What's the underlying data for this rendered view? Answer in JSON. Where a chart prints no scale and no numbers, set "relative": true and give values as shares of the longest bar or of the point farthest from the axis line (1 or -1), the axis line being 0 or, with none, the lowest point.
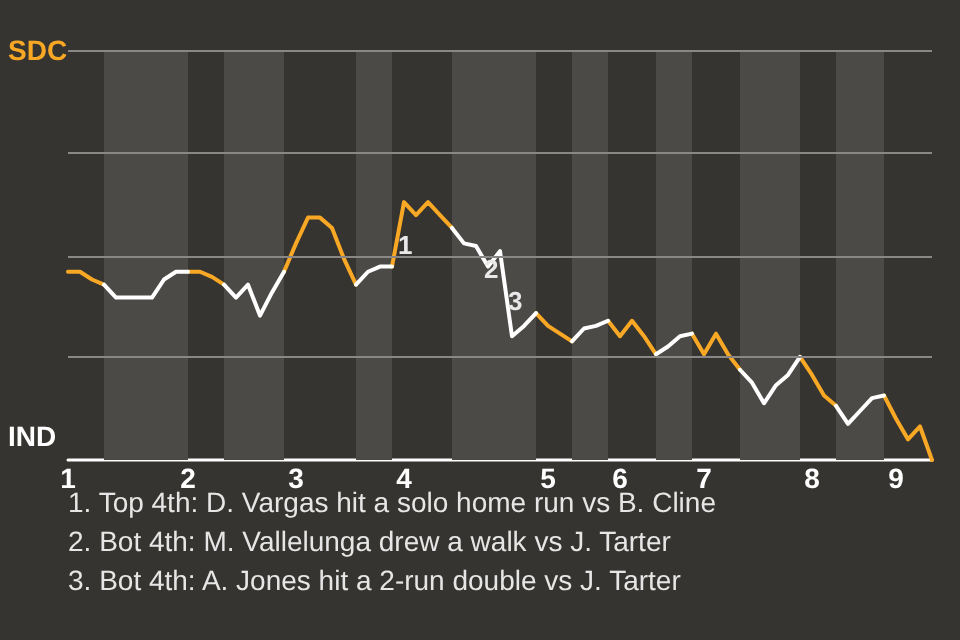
{
  "chart_data": {
    "type": "line",
    "categories": [
      "1",
      null,
      null,
      null,
      null,
      null,
      null,
      null,
      null,
      null,
      "2",
      null,
      null,
      null,
      null,
      null,
      null,
      null,
      null,
      "3",
      null,
      null,
      null,
      null,
      null,
      null,
      null,
      null,
      "4",
      null,
      null,
      null,
      null,
      null,
      null,
      null,
      null,
      null,
      null,
      null,
      "5",
      null,
      null,
      null,
      null,
      null,
      "6",
      null,
      null,
      null,
      null,
      null,
      null,
      "7",
      null,
      null,
      null,
      null,
      null,
      null,
      null,
      null,
      "8",
      null,
      null,
      null,
      null,
      null,
      null,
      "9",
      null,
      null,
      null
    ],
    "series": [
      {
        "color": "#f9a825",
        "values": [
          0.73,
          0.73,
          0.7,
          0.68,
          null,
          null,
          null,
          null,
          null,
          null,
          0.73,
          0.73,
          0.71,
          0.68,
          null,
          null,
          null,
          null,
          0.73,
          0.84,
          0.94,
          0.94,
          0.9,
          0.78,
          0.68,
          null,
          null,
          0.75,
          1,
          0.95,
          1,
          0.95,
          0.9,
          null,
          null,
          null,
          null,
          null,
          null,
          0.57,
          0.52,
          0.49,
          0.46,
          null,
          null,
          0.54,
          0.48,
          0.54,
          0.48,
          0.41,
          null,
          null,
          0.49,
          0.41,
          0.49,
          0.41,
          0.35,
          null,
          null,
          null,
          null,
          0.4,
          0.33,
          0.25,
          0.21,
          null,
          null,
          null,
          0.25,
          0.16,
          0.08,
          0.13,
          0
        ]
      },
      {
        "color": "#ffffff",
        "values": [
          null,
          null,
          null,
          0.68,
          0.63,
          0.63,
          0.63,
          0.63,
          0.7,
          0.73,
          0.73,
          null,
          null,
          0.68,
          0.63,
          0.68,
          0.56,
          0.65,
          0.73,
          null,
          null,
          null,
          null,
          null,
          0.68,
          0.73,
          0.75,
          0.75,
          null,
          null,
          null,
          null,
          0.9,
          0.84,
          0.83,
          0.75,
          0.81,
          0.48,
          0.52,
          0.57,
          null,
          null,
          0.46,
          0.51,
          0.52,
          0.54,
          null,
          null,
          null,
          0.41,
          0.44,
          0.48,
          0.49,
          null,
          null,
          null,
          0.35,
          0.3,
          0.22,
          0.29,
          0.33,
          0.4,
          null,
          null,
          0.21,
          0.14,
          0.19,
          0.24,
          0.25,
          null,
          null,
          null,
          null
        ]
      }
    ],
    "relative": true,
    "ref_lines": [
      {
        "axis": "y",
        "value": 0.4,
        "color": "#8a8886"
      },
      {
        "axis": "y",
        "value": 0.79,
        "color": "#8a8886"
      },
      {
        "axis": "y",
        "value": 1.19,
        "color": "#8a8886"
      },
      {
        "axis": "y",
        "value": 1.59,
        "color": "#8a8886"
      }
    ],
    "marker": "none",
    "line_style": "solid",
    "annotations": [
      "SDC",
      "IND",
      "1",
      "2",
      "3",
      "1. Top 4th: D. Vargas hit a solo home run vs B. Cline",
      "2. Bot 4th: M. Vallelunga drew a walk vs J. Tarter",
      "3. Bot 4th: A. Jones hit a 2-run double vs J. Tarter"
    ]
  }
}
